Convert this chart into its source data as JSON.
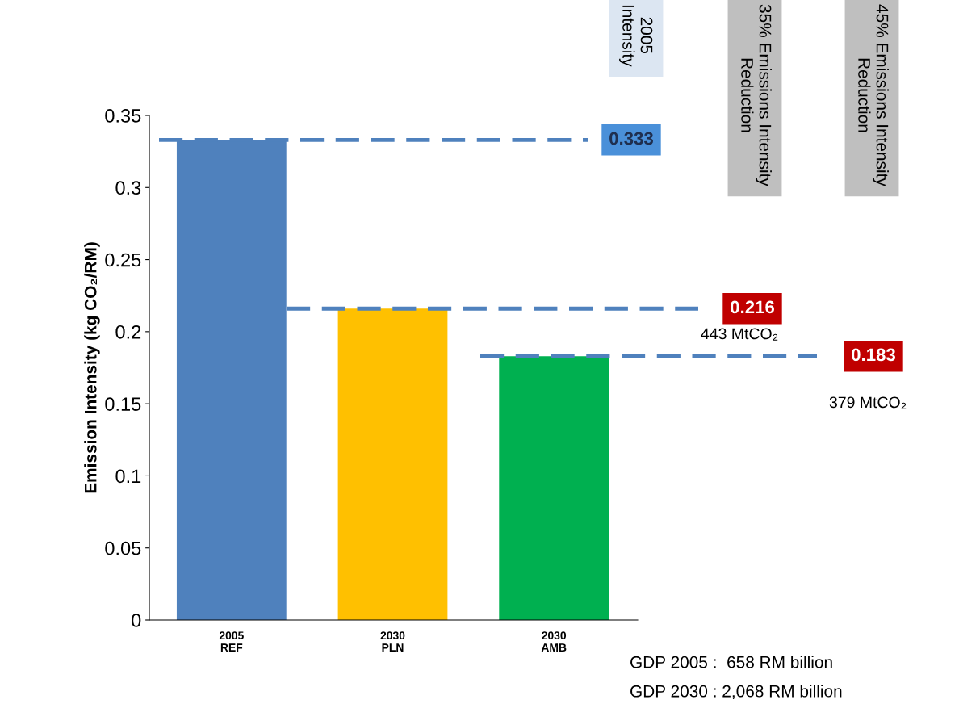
{
  "chart_data": {
    "type": "bar",
    "ylabel": "Emission Intensity (kg CO₂/RM)",
    "categories": [
      "2005\nREF",
      "2030\nPLN",
      "2030\nAMB"
    ],
    "values": [
      0.333,
      0.216,
      0.183
    ],
    "colors": [
      "#4f81bd",
      "#ffc000",
      "#00b050"
    ],
    "ylim": [
      0,
      0.35
    ],
    "yticks": [
      0,
      0.05,
      0.1,
      0.15,
      0.2,
      0.25,
      0.3,
      0.35
    ],
    "grid": false,
    "ref_lines": [
      {
        "axis": "y",
        "value": 0.333,
        "label": "0.333",
        "color": "#4f81bd",
        "line_style": "dashed"
      },
      {
        "axis": "y",
        "value": 0.216,
        "label": "0.216",
        "color": "#4f81bd",
        "line_style": "dashed"
      },
      {
        "axis": "y",
        "value": 0.183,
        "label": "0.183",
        "color": "#4f81bd",
        "line_style": "dashed"
      }
    ],
    "annotations": [
      "2005\nIntensity",
      "35% Emissions Intensity\nReduction",
      "45% Emissions Intensity\nReduction",
      "443 MtCO₂",
      "379 MtCO₂",
      "GDP 2005 :  658 RM billion",
      "GDP 2030 : 2,068 RM billion"
    ]
  }
}
